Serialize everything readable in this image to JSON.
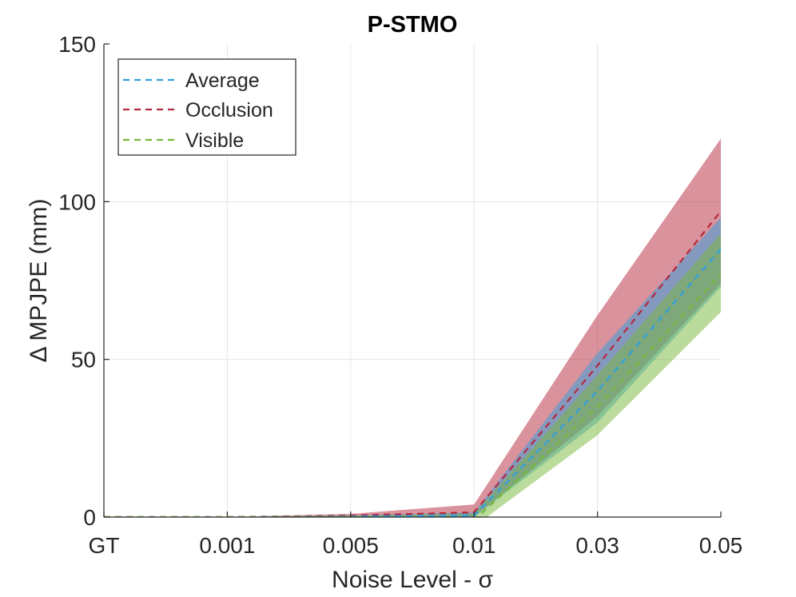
{
  "chart_data": {
    "type": "area",
    "title": "P-STMO",
    "xlabel": "Noise Level - σ",
    "ylabel": "Δ MPJPE (mm)",
    "categories": [
      "GT",
      "0.001",
      "0.005",
      "0.01",
      "0.03",
      "0.05"
    ],
    "ylim": [
      0,
      150
    ],
    "yticks": [
      0,
      50,
      100,
      150
    ],
    "grid": true,
    "legend_position": "top-left",
    "series": [
      {
        "name": "Occlusion",
        "color": "#b5283c",
        "values": [
          0,
          0,
          0.5,
          1.5,
          48,
          97
        ],
        "band_lower": [
          0,
          0,
          0,
          0,
          32,
          74
        ],
        "band_upper": [
          0,
          0,
          1,
          4,
          64,
          120
        ]
      },
      {
        "name": "Average",
        "color": "#2f9fe0",
        "values": [
          0,
          0,
          0.2,
          0.5,
          40,
          85
        ],
        "band_lower": [
          0,
          0,
          0,
          0,
          30,
          73
        ],
        "band_upper": [
          0,
          0,
          0.5,
          1.5,
          52,
          95
        ]
      },
      {
        "name": "Visible",
        "color": "#78b83a",
        "values": [
          0,
          0,
          0,
          -1,
          35,
          77
        ],
        "band_lower": [
          0,
          0,
          0,
          -3,
          26,
          65
        ],
        "band_upper": [
          0,
          0,
          0.5,
          1,
          45,
          90
        ]
      }
    ],
    "legend_order": [
      "Average",
      "Occlusion",
      "Visible"
    ]
  }
}
